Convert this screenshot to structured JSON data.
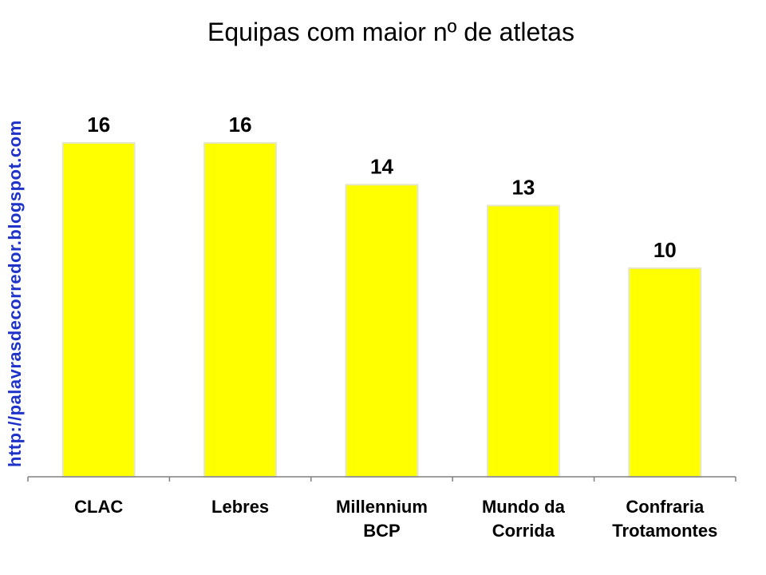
{
  "chart_data": {
    "type": "bar",
    "title": "Equipas com maior nº de atletas",
    "categories": [
      [
        "CLAC"
      ],
      [
        "Lebres"
      ],
      [
        "Millennium",
        "BCP"
      ],
      [
        "Mundo da",
        "Corrida"
      ],
      [
        "Confraria",
        "Trotamontes"
      ]
    ],
    "values": [
      16,
      16,
      14,
      13,
      10
    ],
    "data_labels": [
      "16",
      "16",
      "14",
      "13",
      "10"
    ],
    "ylim": [
      0,
      16
    ],
    "xlabel": "",
    "ylabel": "",
    "grid": false,
    "legend": "none",
    "bar_color": "#ffff00",
    "bar_edge_color": "#e6e6c8",
    "axis_color": "#808080"
  },
  "watermark": {
    "text": "http://palavrasdecorredor.blogspot.com",
    "color": "#1f33c8"
  }
}
